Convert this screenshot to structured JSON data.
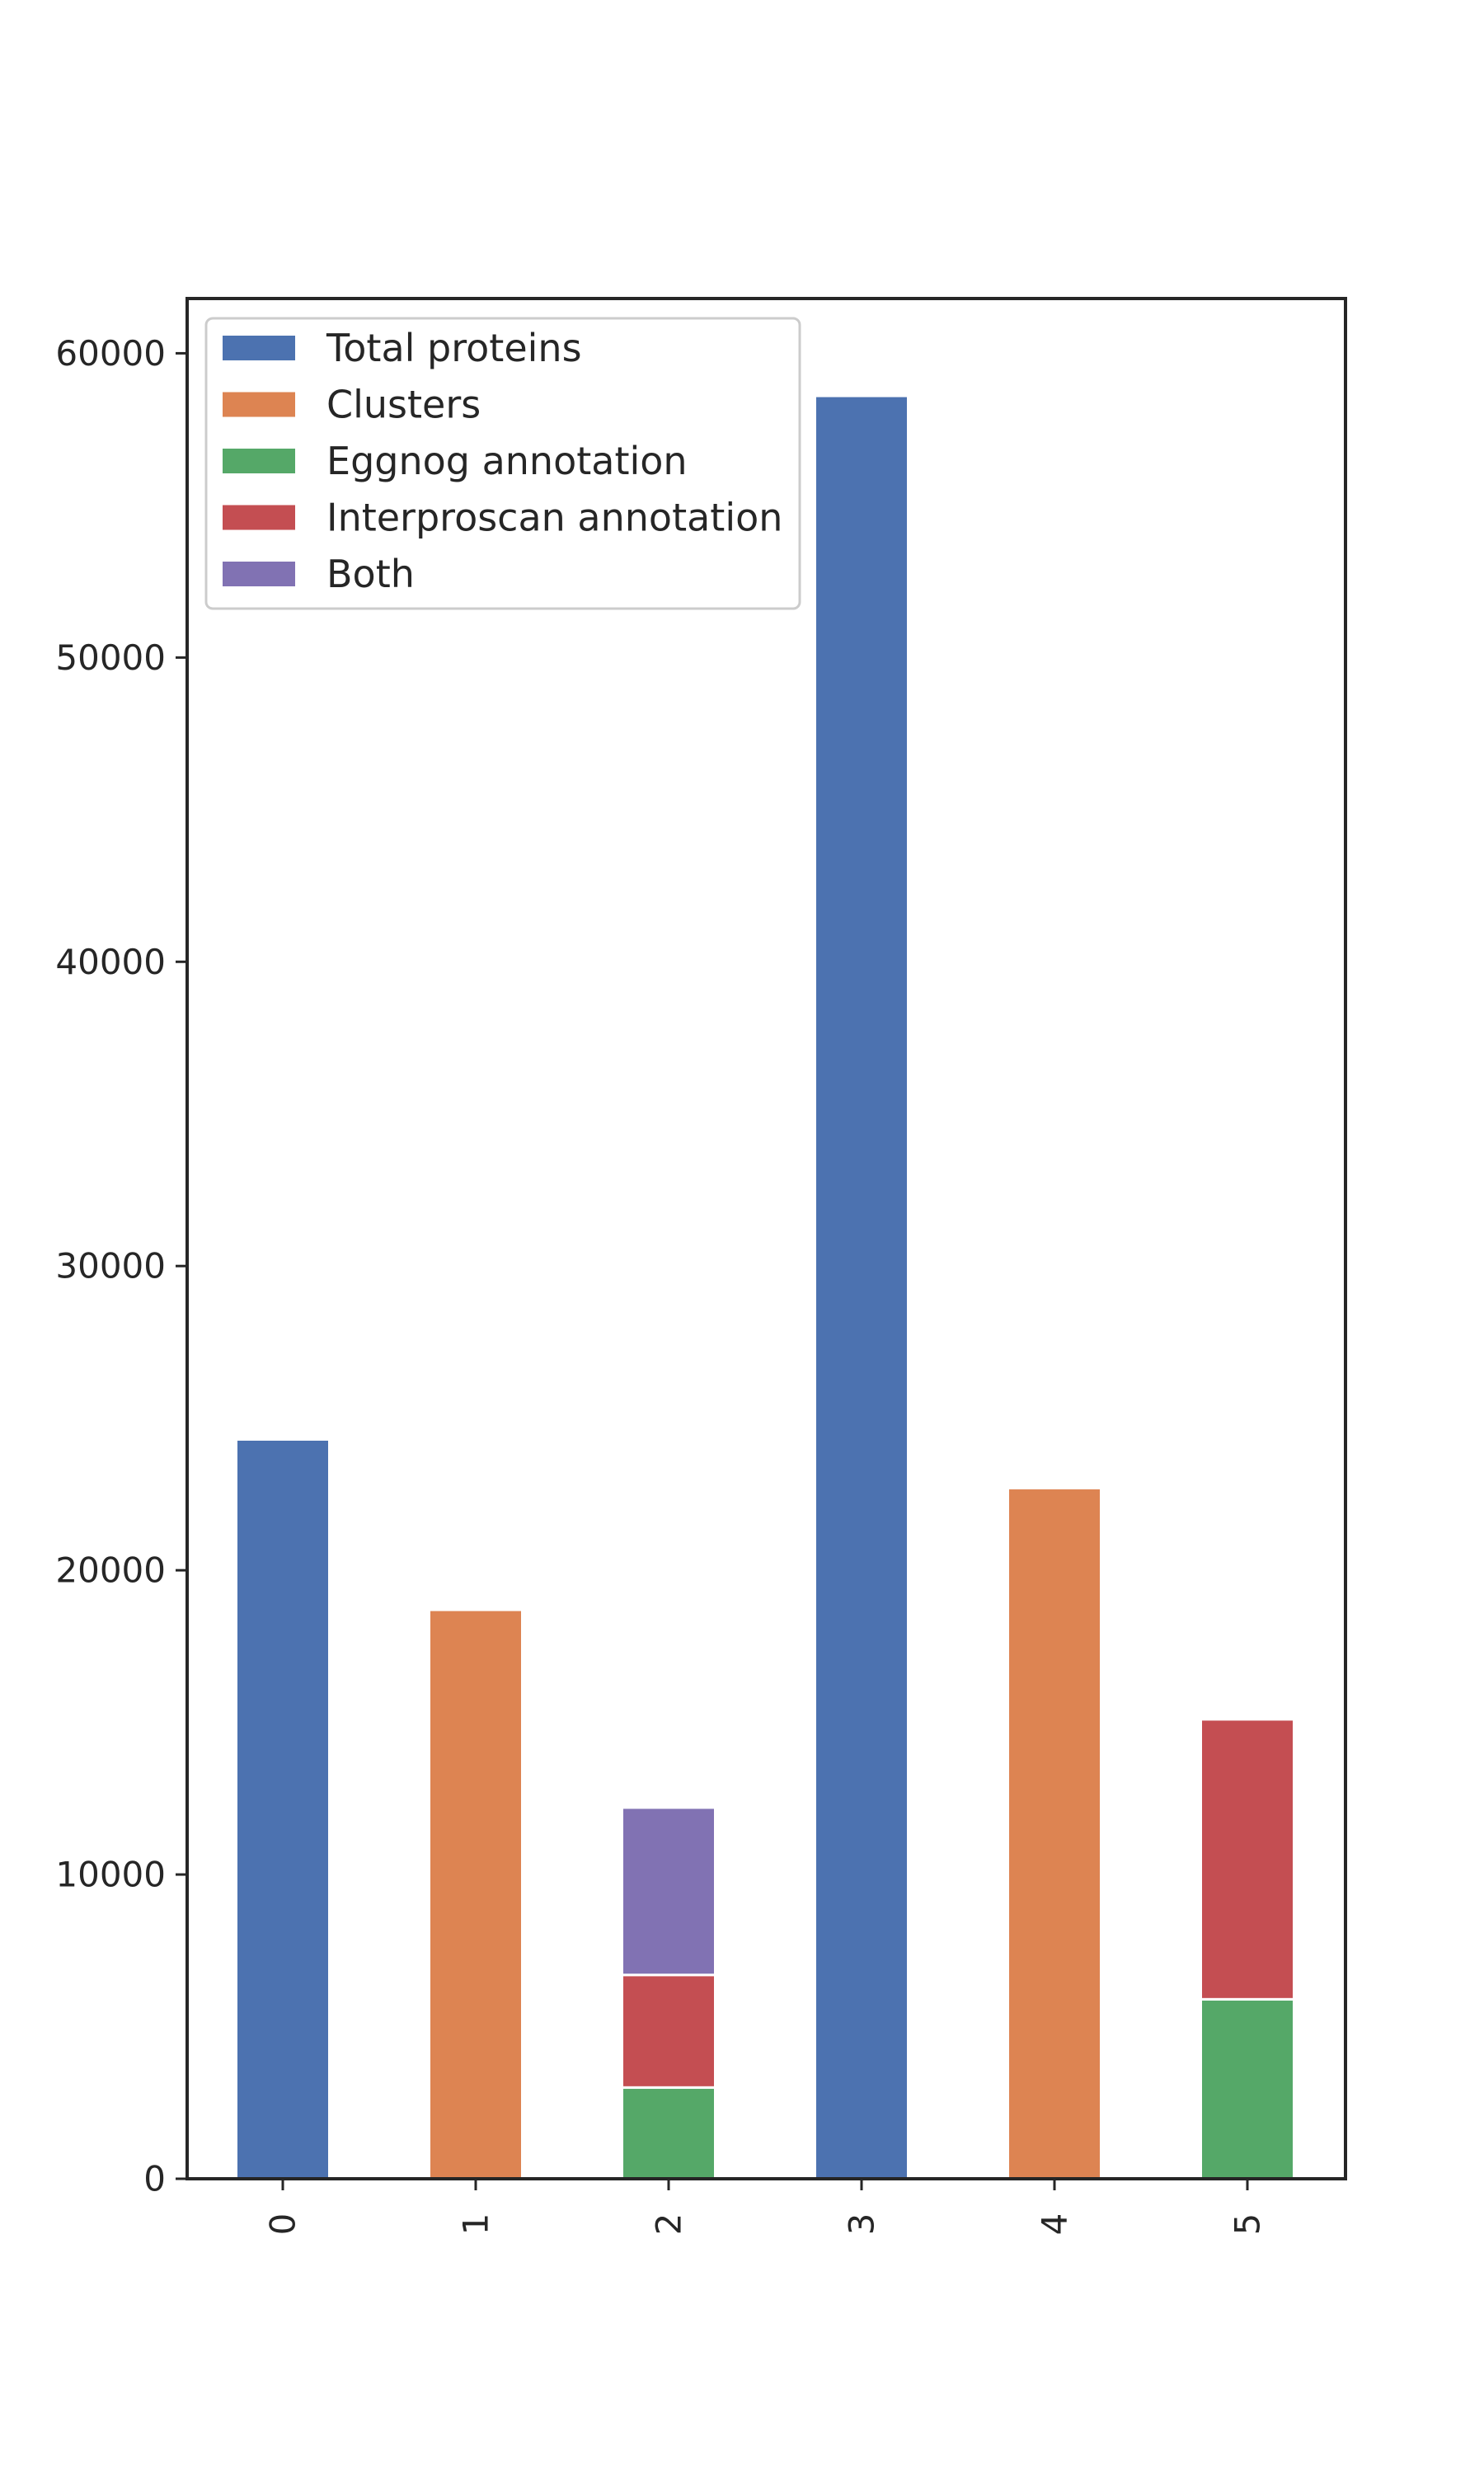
{
  "chart_data": {
    "type": "bar",
    "stacked": true,
    "title": "",
    "xlabel": "",
    "ylabel": "",
    "categories": [
      "0",
      "1",
      "2",
      "3",
      "4",
      "5"
    ],
    "ylim": [
      0,
      61800
    ],
    "yticks": [
      0,
      10000,
      20000,
      30000,
      40000,
      50000,
      60000
    ],
    "ytick_labels": [
      "0",
      "10000",
      "20000",
      "30000",
      "40000",
      "50000",
      "60000"
    ],
    "grid": false,
    "legend_position": "top-left",
    "series": [
      {
        "name": "Total proteins",
        "color": "#4c72b0",
        "values": [
          24300,
          0,
          0,
          58600,
          0,
          0
        ]
      },
      {
        "name": "Clusters",
        "color": "#dd8452",
        "values": [
          0,
          18700,
          0,
          0,
          22700,
          0
        ]
      },
      {
        "name": "Eggnog annotation",
        "color": "#55a868",
        "values": [
          0,
          0,
          3000,
          0,
          0,
          5900
        ]
      },
      {
        "name": "Interproscan annotation",
        "color": "#c44e52",
        "values": [
          0,
          0,
          3700,
          0,
          0,
          9200
        ]
      },
      {
        "name": "Both",
        "color": "#8172b3",
        "values": [
          0,
          0,
          5500,
          0,
          0,
          0
        ]
      }
    ]
  }
}
